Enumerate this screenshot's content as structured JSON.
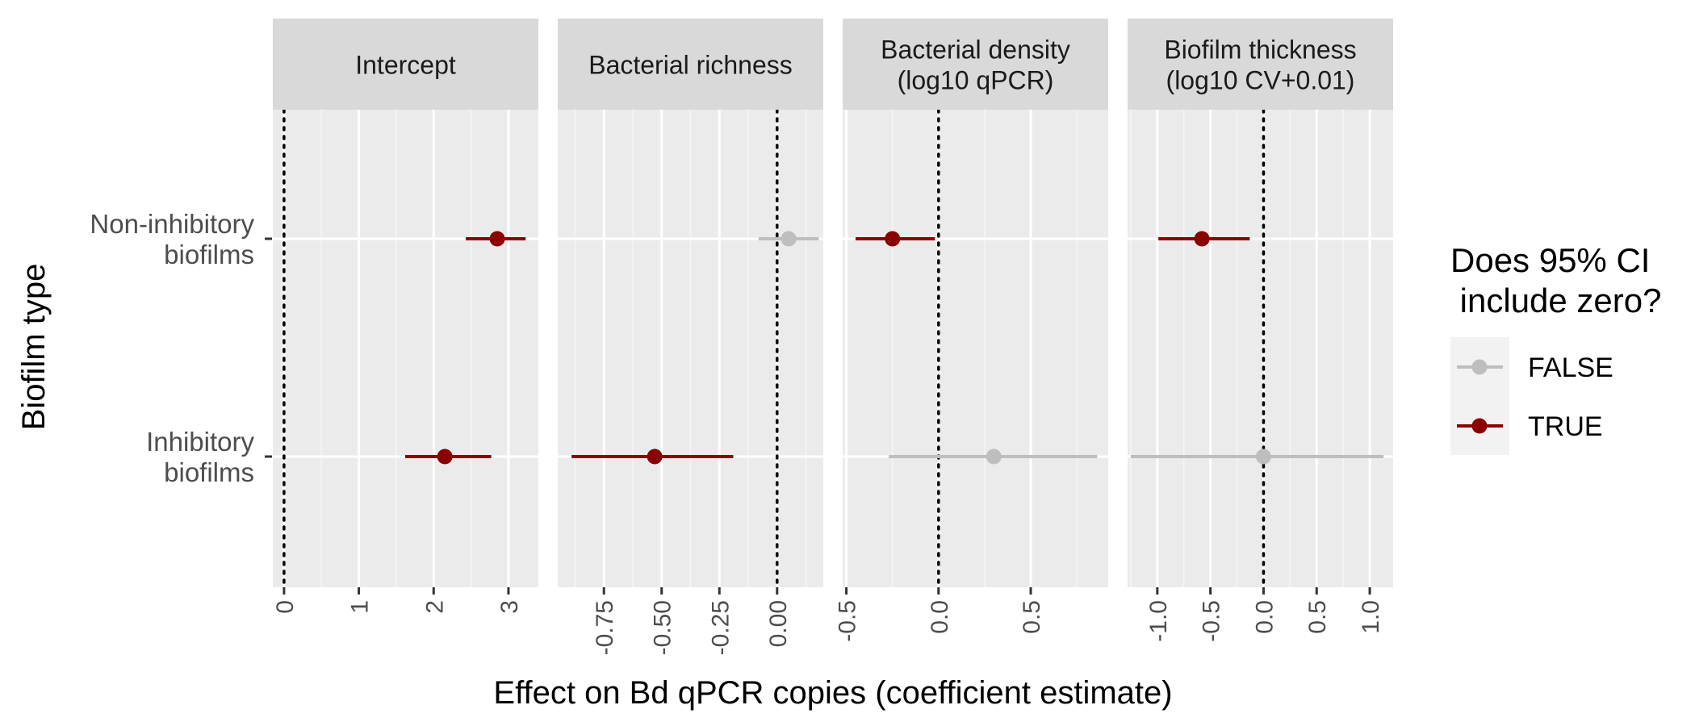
{
  "chart_data": {
    "type": "scatter",
    "kind": "faceted forest plot (point estimate with 95% CI)",
    "xlabel": "Effect on Bd qPCR copies (coefficient estimate)",
    "ylabel": "Biofilm type",
    "categories": [
      "Non-inhibitory\nbiofilms",
      "Inhibitory\nbiofilms"
    ],
    "legend": {
      "title": "Does 95% CI\n include zero?",
      "position": "right",
      "entries": [
        {
          "label": "FALSE",
          "color": "#bebebe"
        },
        {
          "label": "TRUE",
          "color": "#8b0000"
        }
      ]
    },
    "reference_line": 0,
    "grid": true,
    "panels": [
      {
        "title": "Intercept",
        "xlim": [
          -0.15,
          3.4
        ],
        "ticks": [
          0,
          1,
          2,
          3
        ],
        "tick_labels": [
          "0",
          "1",
          "2",
          "3"
        ],
        "rows": [
          {
            "category": "Non-inhibitory biofilms",
            "estimate": 2.85,
            "lower": 2.43,
            "upper": 3.23,
            "excludes_zero": "TRUE"
          },
          {
            "category": "Inhibitory biofilms",
            "estimate": 2.15,
            "lower": 1.62,
            "upper": 2.77,
            "excludes_zero": "TRUE"
          }
        ]
      },
      {
        "title": "Bacterial richness",
        "xlim": [
          -0.95,
          0.2
        ],
        "ticks": [
          -0.75,
          -0.5,
          -0.25,
          0.0
        ],
        "tick_labels": [
          "-0.75",
          "-0.50",
          "-0.25",
          "0.00"
        ],
        "rows": [
          {
            "category": "Non-inhibitory biofilms",
            "estimate": 0.05,
            "lower": -0.08,
            "upper": 0.18,
            "excludes_zero": "FALSE"
          },
          {
            "category": "Inhibitory biofilms",
            "estimate": -0.53,
            "lower": -0.89,
            "upper": -0.19,
            "excludes_zero": "TRUE"
          }
        ]
      },
      {
        "title": "Bacterial density\n(log10 qPCR)",
        "xlim": [
          -0.52,
          0.92
        ],
        "ticks": [
          -0.5,
          0.0,
          0.5
        ],
        "tick_labels": [
          "-0.5",
          "0.0",
          "0.5"
        ],
        "rows": [
          {
            "category": "Non-inhibitory biofilms",
            "estimate": -0.25,
            "lower": -0.45,
            "upper": -0.02,
            "excludes_zero": "TRUE"
          },
          {
            "category": "Inhibitory biofilms",
            "estimate": 0.3,
            "lower": -0.27,
            "upper": 0.86,
            "excludes_zero": "FALSE"
          }
        ]
      },
      {
        "title": "Biofilm thickness\n(log10 CV+0.01)",
        "xlim": [
          -1.28,
          1.22
        ],
        "ticks": [
          -1.0,
          -0.5,
          0.0,
          0.5,
          1.0
        ],
        "tick_labels": [
          "-1.0",
          "-0.5",
          "0.0",
          "0.5",
          "1.0"
        ],
        "rows": [
          {
            "category": "Non-inhibitory biofilms",
            "estimate": -0.58,
            "lower": -0.99,
            "upper": -0.13,
            "excludes_zero": "TRUE"
          },
          {
            "category": "Inhibitory biofilms",
            "estimate": 0.0,
            "lower": -1.25,
            "upper": 1.13,
            "excludes_zero": "FALSE"
          }
        ]
      }
    ]
  }
}
